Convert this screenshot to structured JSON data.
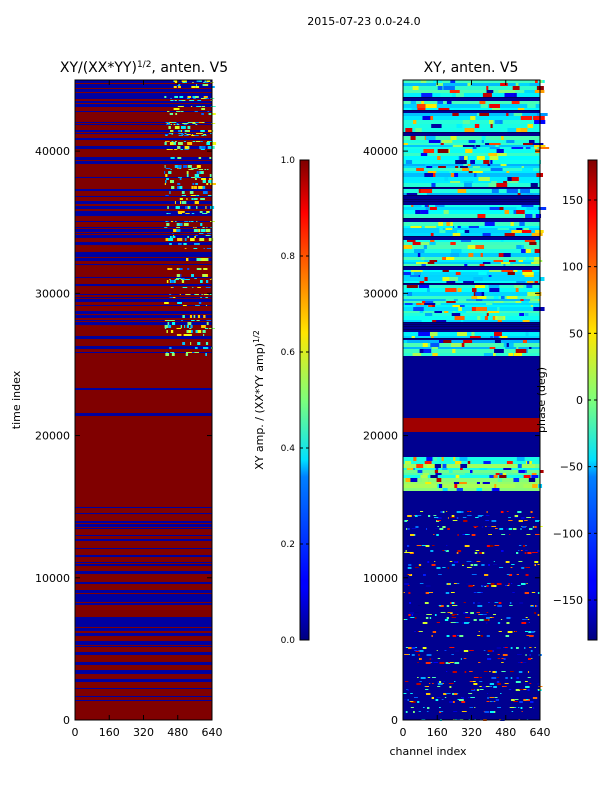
{
  "suptitle": "2015-07-23 0.0-24.0",
  "colors": {
    "jet_low": "#000080",
    "jet_high": "#800000",
    "axis": "#000000"
  },
  "chart_data": [
    {
      "type": "heatmap",
      "title_base": "XY/(XX*YY)",
      "title_exp": "1/2",
      "title_tail": ", anten. V5",
      "xlabel": "",
      "ylabel": "time index",
      "xlim": [
        0,
        640
      ],
      "ylim": [
        0,
        45000
      ],
      "xticks": [
        0,
        160,
        320,
        480,
        640
      ],
      "yticks": [
        0,
        10000,
        20000,
        30000,
        40000
      ],
      "colorbar": {
        "label_base": "XY amp. / (XX*YY amp)",
        "label_exp": "1/2",
        "range": [
          0.0,
          1.0
        ],
        "ticks": [
          "0.0",
          "0.2",
          "0.4",
          "0.6",
          "0.8",
          "1.0"
        ]
      }
    },
    {
      "type": "heatmap",
      "title": "XY, anten. V5",
      "xlabel": "channel index",
      "ylabel": "",
      "xlim": [
        0,
        640
      ],
      "ylim": [
        0,
        45000
      ],
      "xticks": [
        0,
        160,
        320,
        480,
        640
      ],
      "yticks": [
        0,
        10000,
        20000,
        30000,
        40000
      ],
      "colorbar": {
        "label": "phase (deg)",
        "range": [
          -180,
          180
        ],
        "ticks": [
          "−150",
          "−100",
          "−50",
          "0",
          "50",
          "100",
          "150"
        ],
        "tick_values": [
          -150,
          -100,
          -50,
          0,
          50,
          100,
          150
        ]
      }
    }
  ]
}
